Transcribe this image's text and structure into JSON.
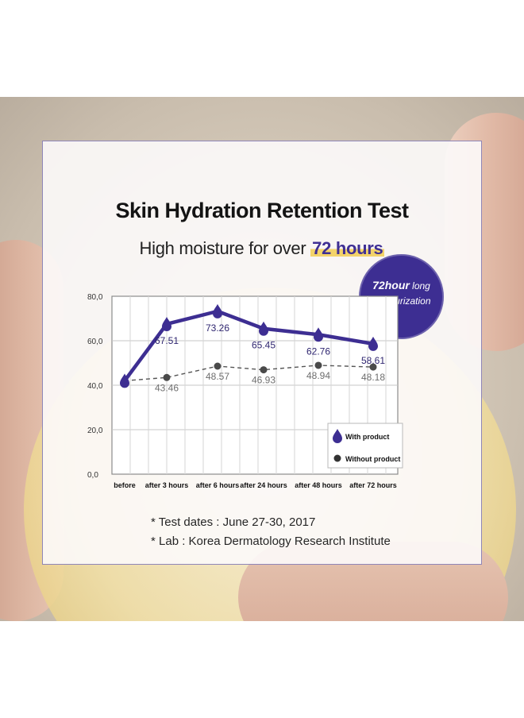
{
  "title": "Skin Hydration Retention Test",
  "subtitle_prefix": "High moisture for over",
  "subtitle_highlight": "72 hours",
  "badge": {
    "line1_bold": "72hour",
    "line1_rest": " long",
    "line2": "moisturization"
  },
  "notes": [
    "* Test dates : June 27-30, 2017",
    "* Lab  : Korea Dermatology Research Institute"
  ],
  "colors": {
    "accent": "#3d2e92",
    "highlight": "#f3d36a",
    "gray_series": "#555555"
  },
  "chart_data": {
    "type": "line",
    "categories": [
      "before",
      "after 3 hours",
      "after 6 hours",
      "after 24 hours",
      "after 48 hours",
      "after 72 hours"
    ],
    "series": [
      {
        "name": "With product",
        "values": [
          42.0,
          67.51,
          73.26,
          65.45,
          62.76,
          58.61
        ],
        "labels": [
          null,
          "67.51",
          "73.26",
          "65.45",
          "62.76",
          "58.61"
        ],
        "color": "#3d2e92",
        "style": "solid"
      },
      {
        "name": "Without product",
        "values": [
          42.0,
          43.46,
          48.57,
          46.93,
          48.94,
          48.18
        ],
        "labels": [
          null,
          "43.46",
          "48.57",
          "46.93",
          "48.94",
          "48.18"
        ],
        "color": "#555555",
        "style": "dashed"
      }
    ],
    "y_ticks": [
      "0,0",
      "20,0",
      "40,0",
      "60,0",
      "80,0"
    ],
    "ylim": [
      0,
      80
    ],
    "grid": true,
    "legend_position": "bottom-right"
  }
}
